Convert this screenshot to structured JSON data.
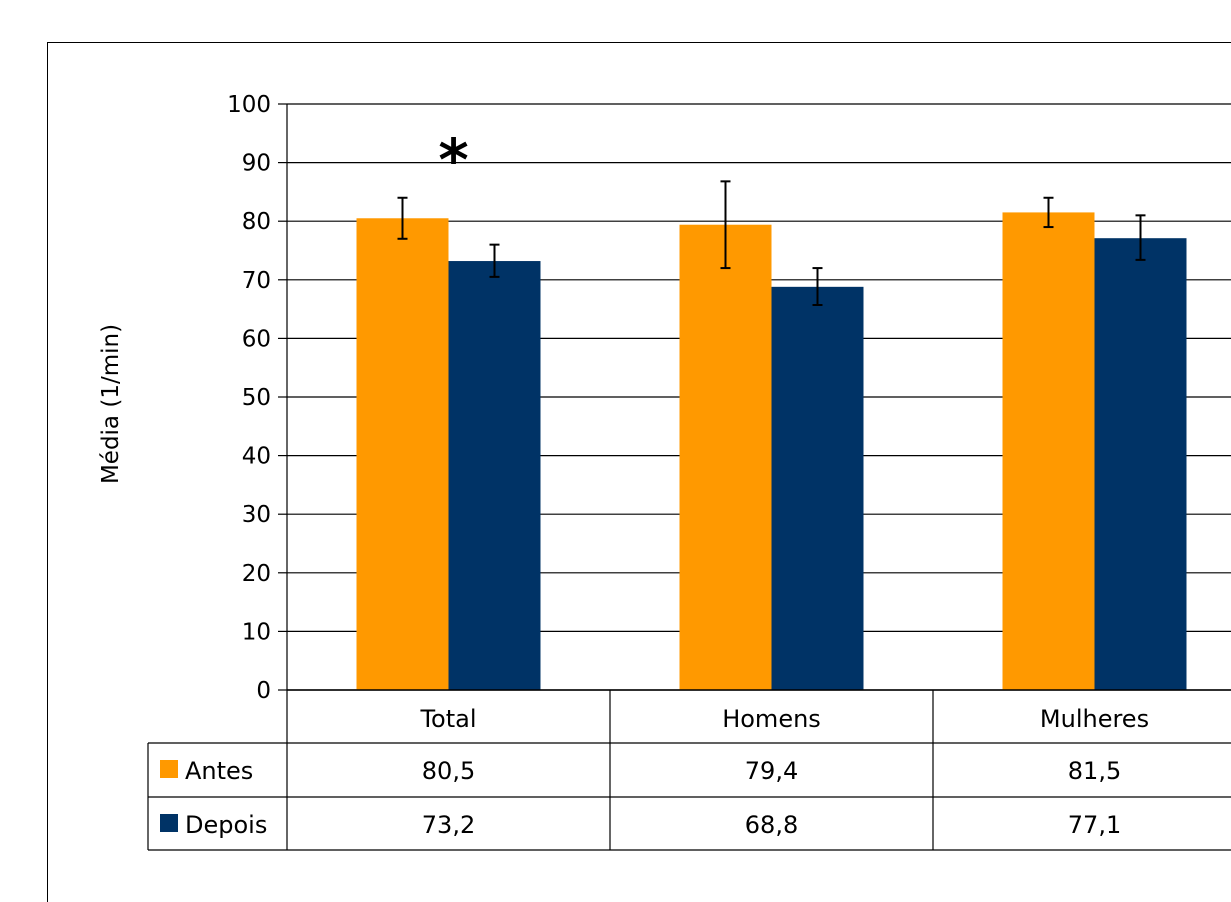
{
  "chart_data": {
    "type": "bar",
    "ylabel": "Média (1/min)",
    "ylim": [
      0,
      100
    ],
    "yticks": [
      0,
      10,
      20,
      30,
      40,
      50,
      60,
      70,
      80,
      90,
      100
    ],
    "grid": true,
    "categories": [
      "Total",
      "Homens",
      "Mulheres"
    ],
    "series": [
      {
        "name": "Antes",
        "color": "#FF9900",
        "values": [
          80.5,
          79.4,
          81.5
        ],
        "labels": [
          "80,5",
          "79,4",
          "81,5"
        ],
        "error": [
          [
            77.0,
            84.0
          ],
          [
            72.0,
            86.8
          ],
          [
            79.0,
            84.0
          ]
        ]
      },
      {
        "name": "Depois",
        "color": "#003366",
        "values": [
          73.2,
          68.8,
          77.1
        ],
        "labels": [
          "73,2",
          "68,8",
          "77,1"
        ],
        "error": [
          [
            70.5,
            76.0
          ],
          [
            65.7,
            72.0
          ],
          [
            73.4,
            81.0
          ]
        ]
      }
    ],
    "annotations": [
      {
        "text": "*",
        "category": "Total"
      }
    ],
    "data_table": true
  }
}
